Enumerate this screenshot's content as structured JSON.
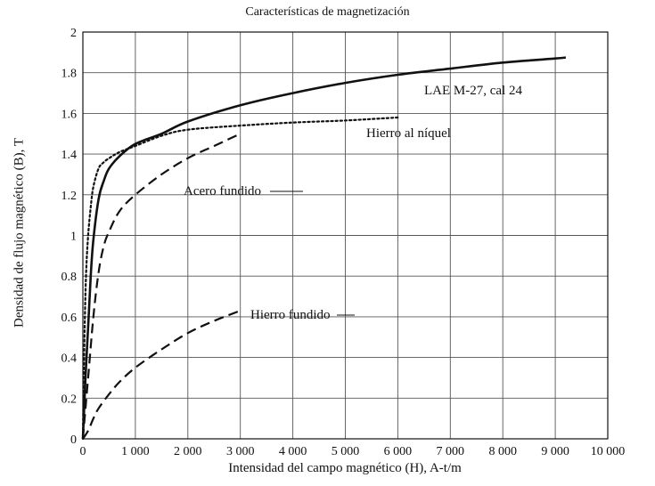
{
  "chart_data": {
    "type": "line",
    "title": "Características de magnetización",
    "xlabel": "Intensidad del campo magnético (H), A-t/m",
    "ylabel": "Densidad de flujo magnético (B), T",
    "xlim": [
      0,
      10000
    ],
    "ylim": [
      0,
      2
    ],
    "grid": true,
    "x_ticks": [
      {
        "value": 0,
        "label": "0"
      },
      {
        "value": 1000,
        "label": "1 000"
      },
      {
        "value": 2000,
        "label": "2 000"
      },
      {
        "value": 3000,
        "label": "3 000"
      },
      {
        "value": 4000,
        "label": "4 000"
      },
      {
        "value": 5000,
        "label": "5 000"
      },
      {
        "value": 6000,
        "label": "6 000"
      },
      {
        "value": 7000,
        "label": "7 000"
      },
      {
        "value": 8000,
        "label": "8 000"
      },
      {
        "value": 9000,
        "label": "9 000"
      },
      {
        "value": 10000,
        "label": "10 000"
      }
    ],
    "y_ticks": [
      {
        "value": 0,
        "label": "0"
      },
      {
        "value": 0.2,
        "label": "0.2"
      },
      {
        "value": 0.4,
        "label": "0.4"
      },
      {
        "value": 0.6,
        "label": "0.6"
      },
      {
        "value": 0.8,
        "label": "0.8"
      },
      {
        "value": 1,
        "label": "1"
      },
      {
        "value": 1.2,
        "label": "1.2"
      },
      {
        "value": 1.4,
        "label": "1.4"
      },
      {
        "value": 1.6,
        "label": "1.6"
      },
      {
        "value": 1.8,
        "label": "1.8"
      },
      {
        "value": 2,
        "label": "2"
      }
    ],
    "series": [
      {
        "name": "LAE M-27, cal 24",
        "style": "solid",
        "x": [
          0,
          50,
          100,
          150,
          200,
          300,
          400,
          500,
          700,
          1000,
          1500,
          2000,
          3000,
          4000,
          5000,
          6000,
          7000,
          8000,
          9000,
          9200
        ],
        "y": [
          0,
          0.3,
          0.55,
          0.8,
          0.98,
          1.18,
          1.27,
          1.33,
          1.39,
          1.45,
          1.5,
          1.56,
          1.64,
          1.7,
          1.75,
          1.79,
          1.82,
          1.85,
          1.87,
          1.875
        ]
      },
      {
        "name": "Hierro al níquel",
        "style": "dotted",
        "x": [
          0,
          30,
          60,
          100,
          150,
          200,
          300,
          400,
          500,
          700,
          1000,
          1500,
          2000,
          3000,
          4000,
          5000,
          6000
        ],
        "y": [
          0,
          0.5,
          0.8,
          1.0,
          1.14,
          1.24,
          1.33,
          1.36,
          1.38,
          1.41,
          1.44,
          1.49,
          1.52,
          1.54,
          1.555,
          1.565,
          1.58
        ]
      },
      {
        "name": "Acero fundido",
        "style": "dashed",
        "x": [
          0,
          100,
          200,
          300,
          400,
          500,
          700,
          1000,
          1500,
          2000,
          2500,
          3000
        ],
        "y": [
          0,
          0.3,
          0.6,
          0.82,
          0.95,
          1.02,
          1.12,
          1.2,
          1.3,
          1.38,
          1.44,
          1.5
        ]
      },
      {
        "name": "Hierro fundido",
        "style": "dashed",
        "x": [
          0,
          100,
          200,
          300,
          500,
          700,
          1000,
          1500,
          2000,
          2500,
          3000
        ],
        "y": [
          0,
          0.04,
          0.1,
          0.15,
          0.22,
          0.28,
          0.35,
          0.44,
          0.52,
          0.58,
          0.63
        ]
      }
    ]
  }
}
